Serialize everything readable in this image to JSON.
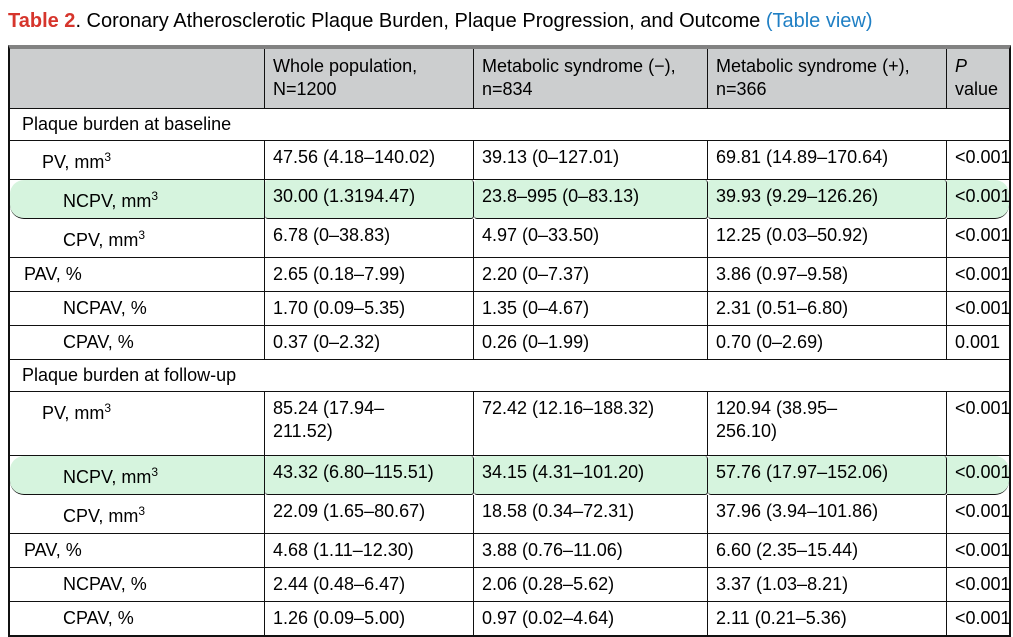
{
  "title": {
    "label": "Table 2",
    "rest": ". Coronary Atherosclerotic Plaque Burden, Plaque Progression, and Outcome ",
    "link": "(Table view)"
  },
  "colors": {
    "header_bg": "#cccecf",
    "highlight_green": "#d6f4de",
    "title_red": "#d6352c",
    "link_blue": "#1f7fc4"
  },
  "table": {
    "columns": [
      "",
      "Whole population, N=1200",
      "Metabolic syndrome (−), n=834",
      "Metabolic syndrome (+), n=366"
    ],
    "p_header": {
      "symbol": "P",
      "rest": "value"
    },
    "sections": [
      {
        "header": "Plaque burden at baseline",
        "rows": [
          {
            "label": "PV, mm",
            "sup": "3",
            "indent": 1,
            "highlight": false,
            "values": [
              "47.56 (4.18–140.02)",
              "39.13 (0–127.01)",
              "69.81 (14.89–170.64)",
              "<0.001"
            ]
          },
          {
            "label": "NCPV, mm",
            "sup": "3",
            "indent": 2,
            "highlight": true,
            "values": [
              "30.00 (1.3194.47)",
              "23.8–995 (0–83.13)",
              "39.93 (9.29–126.26)",
              "<0.001"
            ]
          },
          {
            "label": "CPV, mm",
            "sup": "3",
            "indent": 2,
            "highlight": false,
            "values": [
              "6.78 (0–38.83)",
              "4.97 (0–33.50)",
              "12.25 (0.03–50.92)",
              "<0.001"
            ]
          },
          {
            "label": "PAV, %",
            "sup": "",
            "indent": 0,
            "highlight": false,
            "values": [
              "2.65 (0.18–7.99)",
              "2.20 (0–7.37)",
              "3.86 (0.97–9.58)",
              "<0.001"
            ]
          },
          {
            "label": "NCPAV, %",
            "sup": "",
            "indent": 2,
            "highlight": false,
            "values": [
              "1.70 (0.09–5.35)",
              "1.35 (0–4.67)",
              "2.31 (0.51–6.80)",
              "<0.001"
            ]
          },
          {
            "label": "CPAV, %",
            "sup": "",
            "indent": 2,
            "highlight": false,
            "values": [
              "0.37 (0–2.32)",
              "0.26 (0–1.99)",
              "0.70 (0–2.69)",
              "0.001"
            ]
          }
        ]
      },
      {
        "header": "Plaque burden at follow-up",
        "rows": [
          {
            "label": "PV, mm",
            "sup": "3",
            "indent": 1,
            "highlight": false,
            "values": [
              "85.24 (17.94–\n211.52)",
              "72.42 (12.16–188.32)",
              "120.94 (38.95–\n256.10)",
              "<0.001"
            ]
          },
          {
            "label": "NCPV, mm",
            "sup": "3",
            "indent": 2,
            "highlight": true,
            "values": [
              "43.32 (6.80–115.51)",
              "34.15 (4.31–101.20)",
              "57.76 (17.97–152.06)",
              "<0.001"
            ]
          },
          {
            "label": "CPV, mm",
            "sup": "3",
            "indent": 2,
            "highlight": false,
            "values": [
              "22.09 (1.65–80.67)",
              "18.58 (0.34–72.31)",
              "37.96 (3.94–101.86)",
              "<0.001"
            ]
          },
          {
            "label": "PAV, %",
            "sup": "",
            "indent": 0,
            "highlight": false,
            "values": [
              "4.68 (1.11–12.30)",
              "3.88 (0.76–11.06)",
              "6.60 (2.35–15.44)",
              "<0.001"
            ]
          },
          {
            "label": "NCPAV, %",
            "sup": "",
            "indent": 2,
            "highlight": false,
            "values": [
              "2.44 (0.48–6.47)",
              "2.06 (0.28–5.62)",
              "3.37 (1.03–8.21)",
              "<0.001"
            ]
          },
          {
            "label": "CPAV, %",
            "sup": "",
            "indent": 2,
            "highlight": false,
            "values": [
              "1.26 (0.09–5.00)",
              "0.97 (0.02–4.64)",
              "2.11 (0.21–5.36)",
              "<0.001"
            ]
          }
        ]
      }
    ]
  }
}
